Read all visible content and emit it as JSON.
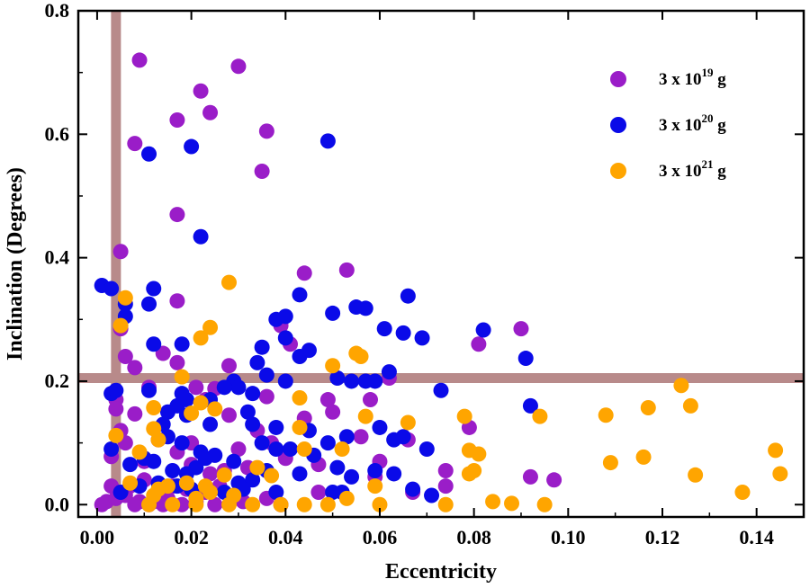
{
  "chart_data": {
    "type": "scatter",
    "title": "",
    "xlabel": "Eccentricity",
    "ylabel": "Inclination (Degrees)",
    "xlim": [
      -0.004,
      0.15
    ],
    "ylim": [
      -0.02,
      0.8
    ],
    "xticks": [
      0.0,
      0.02,
      0.04,
      0.06,
      0.08,
      0.1,
      0.12,
      0.14
    ],
    "xtick_labels": [
      "0.00",
      "0.02",
      "0.04",
      "0.06",
      "0.08",
      "0.10",
      "0.12",
      "0.14"
    ],
    "yticks": [
      0.0,
      0.2,
      0.4,
      0.6,
      0.8
    ],
    "ytick_labels": [
      "0.0",
      "0.2",
      "0.4",
      "0.6",
      "0.8"
    ],
    "grid": false,
    "legend_position": "top-right",
    "reference_lines": {
      "color": "#b88a8a",
      "vertical_x": 0.004,
      "horizontal_y": 0.205
    },
    "series": [
      {
        "name": "3 x 10^19 g",
        "legend_base": "3 x 10",
        "legend_exp": "19",
        "legend_unit": " g",
        "color": "#9a1dc8",
        "points": [
          [
            0.009,
            0.72
          ],
          [
            0.03,
            0.71
          ],
          [
            0.022,
            0.67
          ],
          [
            0.024,
            0.635
          ],
          [
            0.017,
            0.623
          ],
          [
            0.036,
            0.605
          ],
          [
            0.008,
            0.585
          ],
          [
            0.035,
            0.54
          ],
          [
            0.017,
            0.47
          ],
          [
            0.005,
            0.41
          ],
          [
            0.053,
            0.38
          ],
          [
            0.044,
            0.375
          ],
          [
            0.017,
            0.33
          ],
          [
            0.005,
            0.285
          ],
          [
            0.039,
            0.29
          ],
          [
            0.041,
            0.26
          ],
          [
            0.028,
            0.225
          ],
          [
            0.017,
            0.23
          ],
          [
            0.008,
            0.222
          ],
          [
            0.014,
            0.245
          ],
          [
            0.021,
            0.19
          ],
          [
            0.025,
            0.188
          ],
          [
            0.036,
            0.175
          ],
          [
            0.004,
            0.17
          ],
          [
            0.004,
            0.155
          ],
          [
            0.008,
            0.147
          ],
          [
            0.023,
            0.17
          ],
          [
            0.028,
            0.145
          ],
          [
            0.034,
            0.12
          ],
          [
            0.044,
            0.14
          ],
          [
            0.049,
            0.17
          ],
          [
            0.05,
            0.15
          ],
          [
            0.058,
            0.17
          ],
          [
            0.062,
            0.205
          ],
          [
            0.09,
            0.285
          ],
          [
            0.081,
            0.26
          ],
          [
            0.079,
            0.125
          ],
          [
            0.066,
            0.105
          ],
          [
            0.074,
            0.055
          ],
          [
            0.092,
            0.045
          ],
          [
            0.097,
            0.04
          ],
          [
            0.067,
            0.02
          ],
          [
            0.074,
            0.03
          ],
          [
            0.003,
            0.078
          ],
          [
            0.005,
            0.12
          ],
          [
            0.006,
            0.1
          ],
          [
            0.01,
            0.07
          ],
          [
            0.013,
            0.105
          ],
          [
            0.017,
            0.085
          ],
          [
            0.02,
            0.065
          ],
          [
            0.024,
            0.05
          ],
          [
            0.027,
            0.055
          ],
          [
            0.032,
            0.06
          ],
          [
            0.037,
            0.1
          ],
          [
            0.04,
            0.075
          ],
          [
            0.047,
            0.065
          ],
          [
            0.056,
            0.11
          ],
          [
            0.06,
            0.07
          ],
          [
            0.001,
            0.0
          ],
          [
            0.002,
            0.005
          ],
          [
            0.004,
            0.01
          ],
          [
            0.006,
            0.015
          ],
          [
            0.009,
            0.005
          ],
          [
            0.011,
            0.0
          ],
          [
            0.013,
            0.02
          ],
          [
            0.015,
            0.01
          ],
          [
            0.018,
            0.0
          ],
          [
            0.021,
            0.005
          ],
          [
            0.023,
            0.02
          ],
          [
            0.025,
            0.0
          ],
          [
            0.029,
            0.01
          ],
          [
            0.031,
            0.005
          ],
          [
            0.036,
            0.01
          ],
          [
            0.039,
            0.0
          ],
          [
            0.003,
            0.03
          ],
          [
            0.007,
            0.03
          ],
          [
            0.01,
            0.04
          ],
          [
            0.016,
            0.03
          ],
          [
            0.019,
            0.025
          ],
          [
            0.026,
            0.03
          ],
          [
            0.059,
            0.045
          ],
          [
            0.047,
            0.02
          ],
          [
            0.012,
            0.005
          ],
          [
            0.014,
            0.0
          ],
          [
            0.008,
            0.0
          ],
          [
            0.02,
            0.1
          ],
          [
            0.03,
            0.09
          ],
          [
            0.006,
            0.24
          ],
          [
            0.011,
            0.19
          ]
        ]
      },
      {
        "name": "3 x 10^20 g",
        "legend_base": "3 x 10",
        "legend_exp": "20",
        "legend_unit": " g",
        "color": "#0a0ae8",
        "points": [
          [
            0.049,
            0.589
          ],
          [
            0.02,
            0.58
          ],
          [
            0.011,
            0.568
          ],
          [
            0.022,
            0.434
          ],
          [
            0.001,
            0.355
          ],
          [
            0.003,
            0.35
          ],
          [
            0.012,
            0.35
          ],
          [
            0.006,
            0.325
          ],
          [
            0.011,
            0.325
          ],
          [
            0.006,
            0.305
          ],
          [
            0.043,
            0.34
          ],
          [
            0.066,
            0.338
          ],
          [
            0.055,
            0.32
          ],
          [
            0.057,
            0.318
          ],
          [
            0.05,
            0.31
          ],
          [
            0.04,
            0.305
          ],
          [
            0.038,
            0.3
          ],
          [
            0.061,
            0.285
          ],
          [
            0.065,
            0.278
          ],
          [
            0.069,
            0.27
          ],
          [
            0.082,
            0.283
          ],
          [
            0.04,
            0.27
          ],
          [
            0.035,
            0.255
          ],
          [
            0.045,
            0.25
          ],
          [
            0.043,
            0.24
          ],
          [
            0.034,
            0.23
          ],
          [
            0.012,
            0.26
          ],
          [
            0.018,
            0.26
          ],
          [
            0.091,
            0.237
          ],
          [
            0.029,
            0.2
          ],
          [
            0.03,
            0.19
          ],
          [
            0.036,
            0.21
          ],
          [
            0.051,
            0.205
          ],
          [
            0.054,
            0.2
          ],
          [
            0.057,
            0.2
          ],
          [
            0.059,
            0.2
          ],
          [
            0.062,
            0.215
          ],
          [
            0.04,
            0.2
          ],
          [
            0.033,
            0.18
          ],
          [
            0.027,
            0.19
          ],
          [
            0.024,
            0.17
          ],
          [
            0.019,
            0.17
          ],
          [
            0.017,
            0.16
          ],
          [
            0.003,
            0.18
          ],
          [
            0.004,
            0.185
          ],
          [
            0.011,
            0.185
          ],
          [
            0.073,
            0.185
          ],
          [
            0.092,
            0.16
          ],
          [
            0.015,
            0.15
          ],
          [
            0.019,
            0.145
          ],
          [
            0.024,
            0.13
          ],
          [
            0.032,
            0.15
          ],
          [
            0.033,
            0.13
          ],
          [
            0.038,
            0.125
          ],
          [
            0.045,
            0.12
          ],
          [
            0.06,
            0.125
          ],
          [
            0.063,
            0.105
          ],
          [
            0.065,
            0.11
          ],
          [
            0.053,
            0.11
          ],
          [
            0.049,
            0.1
          ],
          [
            0.041,
            0.09
          ],
          [
            0.038,
            0.09
          ],
          [
            0.035,
            0.1
          ],
          [
            0.014,
            0.13
          ],
          [
            0.015,
            0.11
          ],
          [
            0.018,
            0.1
          ],
          [
            0.022,
            0.085
          ],
          [
            0.025,
            0.08
          ],
          [
            0.029,
            0.07
          ],
          [
            0.007,
            0.065
          ],
          [
            0.01,
            0.075
          ],
          [
            0.012,
            0.07
          ],
          [
            0.016,
            0.055
          ],
          [
            0.021,
            0.06
          ],
          [
            0.023,
            0.075
          ],
          [
            0.03,
            0.035
          ],
          [
            0.033,
            0.04
          ],
          [
            0.036,
            0.055
          ],
          [
            0.043,
            0.05
          ],
          [
            0.046,
            0.08
          ],
          [
            0.051,
            0.06
          ],
          [
            0.054,
            0.045
          ],
          [
            0.059,
            0.055
          ],
          [
            0.063,
            0.05
          ],
          [
            0.07,
            0.09
          ],
          [
            0.067,
            0.025
          ],
          [
            0.071,
            0.015
          ],
          [
            0.005,
            0.02
          ],
          [
            0.009,
            0.03
          ],
          [
            0.013,
            0.035
          ],
          [
            0.017,
            0.03
          ],
          [
            0.02,
            0.025
          ],
          [
            0.027,
            0.02
          ],
          [
            0.031,
            0.025
          ],
          [
            0.038,
            0.02
          ],
          [
            0.05,
            0.02
          ],
          [
            0.052,
            0.02
          ],
          [
            0.003,
            0.09
          ],
          [
            0.018,
            0.18
          ],
          [
            0.019,
            0.05
          ]
        ]
      },
      {
        "name": "3 x 10^21 g",
        "legend_base": "3 x 10",
        "legend_exp": "21",
        "legend_unit": " g",
        "color": "#ffa500",
        "points": [
          [
            0.006,
            0.335
          ],
          [
            0.028,
            0.36
          ],
          [
            0.005,
            0.29
          ],
          [
            0.024,
            0.287
          ],
          [
            0.022,
            0.27
          ],
          [
            0.055,
            0.245
          ],
          [
            0.056,
            0.24
          ],
          [
            0.05,
            0.225
          ],
          [
            0.018,
            0.207
          ],
          [
            0.124,
            0.193
          ],
          [
            0.043,
            0.173
          ],
          [
            0.022,
            0.165
          ],
          [
            0.025,
            0.155
          ],
          [
            0.02,
            0.148
          ],
          [
            0.012,
            0.157
          ],
          [
            0.057,
            0.143
          ],
          [
            0.078,
            0.143
          ],
          [
            0.094,
            0.143
          ],
          [
            0.108,
            0.145
          ],
          [
            0.117,
            0.157
          ],
          [
            0.126,
            0.16
          ],
          [
            0.066,
            0.133
          ],
          [
            0.043,
            0.125
          ],
          [
            0.012,
            0.123
          ],
          [
            0.004,
            0.112
          ],
          [
            0.013,
            0.105
          ],
          [
            0.044,
            0.09
          ],
          [
            0.052,
            0.09
          ],
          [
            0.079,
            0.088
          ],
          [
            0.081,
            0.082
          ],
          [
            0.144,
            0.088
          ],
          [
            0.109,
            0.068
          ],
          [
            0.116,
            0.077
          ],
          [
            0.009,
            0.085
          ],
          [
            0.007,
            0.035
          ],
          [
            0.034,
            0.06
          ],
          [
            0.037,
            0.047
          ],
          [
            0.027,
            0.048
          ],
          [
            0.013,
            0.025
          ],
          [
            0.015,
            0.03
          ],
          [
            0.019,
            0.035
          ],
          [
            0.023,
            0.03
          ],
          [
            0.024,
            0.02
          ],
          [
            0.021,
            0.01
          ],
          [
            0.029,
            0.015
          ],
          [
            0.059,
            0.03
          ],
          [
            0.079,
            0.05
          ],
          [
            0.08,
            0.055
          ],
          [
            0.127,
            0.048
          ],
          [
            0.145,
            0.05
          ],
          [
            0.137,
            0.02
          ],
          [
            0.084,
            0.005
          ],
          [
            0.088,
            0.002
          ],
          [
            0.095,
            0.0
          ],
          [
            0.074,
            0.0
          ],
          [
            0.06,
            0.0
          ],
          [
            0.049,
            0.0
          ],
          [
            0.044,
            0.0
          ],
          [
            0.039,
            0.0
          ],
          [
            0.033,
            0.0
          ],
          [
            0.028,
            0.0
          ],
          [
            0.021,
            0.0
          ],
          [
            0.016,
            0.0
          ],
          [
            0.011,
            0.0
          ],
          [
            0.053,
            0.01
          ],
          [
            0.012,
            0.015
          ]
        ]
      }
    ]
  }
}
